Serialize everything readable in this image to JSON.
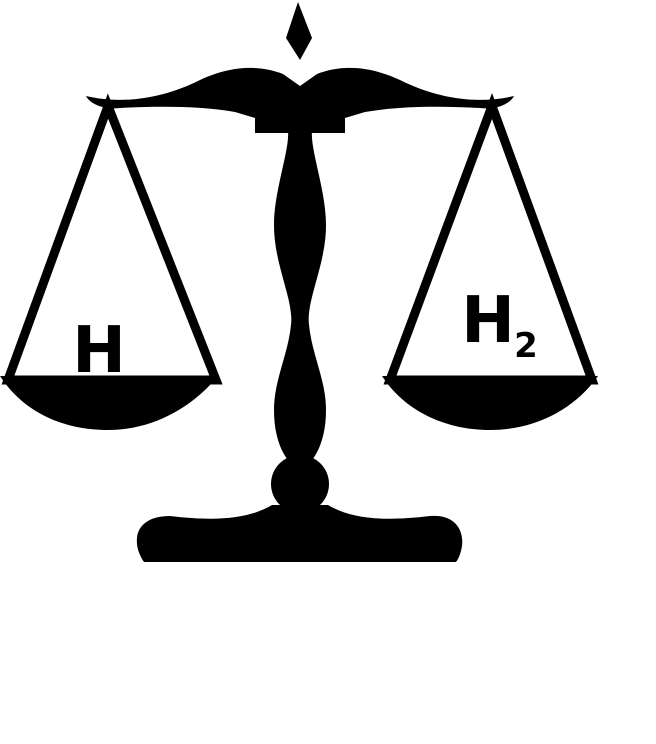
{
  "left_pan": {
    "label": "H"
  },
  "right_pan": {
    "label": "H",
    "subscript": "2"
  },
  "colors": {
    "ink": "#000000",
    "background": "#ffffff"
  },
  "icons": {
    "figure": "balance-scale-icon"
  }
}
